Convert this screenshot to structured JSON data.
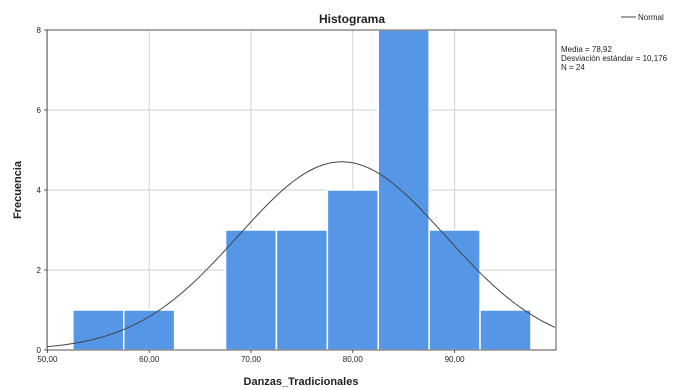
{
  "chart_data": {
    "type": "bar",
    "subtype": "histogram",
    "title": "Histograma",
    "xlabel": "Danzas_Tradicionales",
    "ylabel": "Frecuencia",
    "xlim": [
      50,
      95
    ],
    "ylim": [
      0,
      8
    ],
    "x_ticks": [
      "50,00",
      "60,00",
      "70,00",
      "80,00",
      "90,00"
    ],
    "y_ticks": [
      "0",
      "2",
      "4",
      "6",
      "8"
    ],
    "bins": [
      {
        "start": 52.5,
        "end": 57.5,
        "count": 1
      },
      {
        "start": 57.5,
        "end": 62.5,
        "count": 1
      },
      {
        "start": 62.5,
        "end": 67.5,
        "count": 0
      },
      {
        "start": 67.5,
        "end": 72.5,
        "count": 3
      },
      {
        "start": 72.5,
        "end": 77.5,
        "count": 3
      },
      {
        "start": 77.5,
        "end": 82.5,
        "count": 4
      },
      {
        "start": 82.5,
        "end": 87.5,
        "count": 8
      },
      {
        "start": 87.5,
        "end": 92.5,
        "count": 3
      },
      {
        "start": 92.5,
        "end": 97.5,
        "count": 1
      }
    ],
    "normal_curve": {
      "mean": 78.92,
      "sd": 10.176,
      "n": 24,
      "bin_width": 5
    },
    "stats_lines": [
      "Media = 78,92",
      "Desviación estándar = 10,176",
      "N = 24"
    ],
    "legend": {
      "label": "Normal",
      "placement": "top-right"
    },
    "grid": true,
    "bar_color": "#5596e6",
    "curve_color": "#444444"
  }
}
